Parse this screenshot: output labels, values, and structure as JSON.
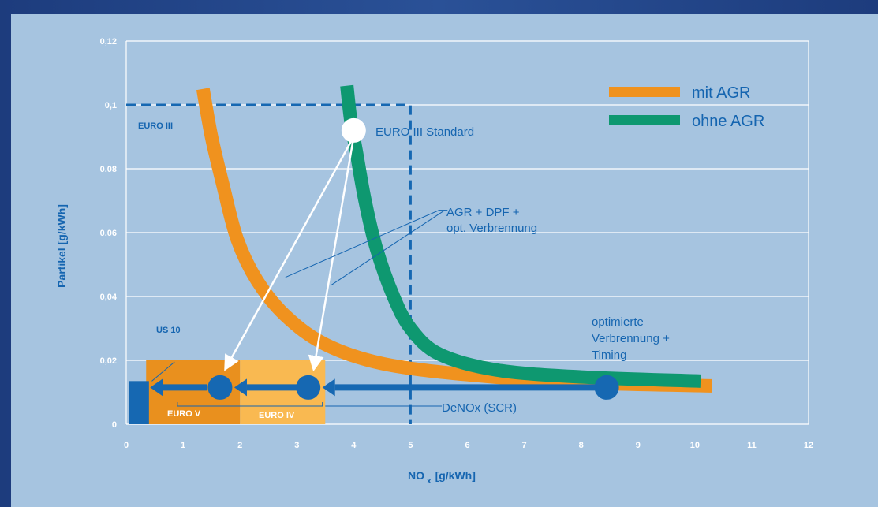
{
  "chart_data": {
    "type": "line",
    "xlabel": "NO",
    "xlabel_sub": "x",
    "xlabel_unit": "[g/kWh]",
    "ylabel": "Partikel [g/kWh]",
    "xlim": [
      0,
      12
    ],
    "ylim": [
      0,
      0.12
    ],
    "x_ticks": [
      "0",
      "1",
      "2",
      "3",
      "4",
      "5",
      "6",
      "7",
      "8",
      "9",
      "10",
      "11",
      "12"
    ],
    "y_ticks": [
      {
        "v": 0,
        "label": "0"
      },
      {
        "v": 0.02,
        "label": "0,02"
      },
      {
        "v": 0.04,
        "label": "0,04"
      },
      {
        "v": 0.06,
        "label": "0,06"
      },
      {
        "v": 0.08,
        "label": "0,08"
      },
      {
        "v": 0.1,
        "label": "0,1"
      },
      {
        "v": 0.12,
        "label": "0,12"
      }
    ],
    "grid": true,
    "legend_position": "top-right",
    "series": [
      {
        "name": "mit AGR",
        "color": "#f0921e",
        "points": [
          [
            1.35,
            0.105
          ],
          [
            1.5,
            0.09
          ],
          [
            1.7,
            0.075
          ],
          [
            1.95,
            0.058
          ],
          [
            2.3,
            0.045
          ],
          [
            2.8,
            0.034
          ],
          [
            3.5,
            0.025
          ],
          [
            4.5,
            0.019
          ],
          [
            6,
            0.0155
          ],
          [
            8,
            0.013
          ],
          [
            10.3,
            0.012
          ]
        ]
      },
      {
        "name": "ohne AGR",
        "color": "#0e9870",
        "points": [
          [
            3.88,
            0.106
          ],
          [
            3.95,
            0.095
          ],
          [
            4.05,
            0.085
          ],
          [
            4.2,
            0.07
          ],
          [
            4.4,
            0.055
          ],
          [
            4.7,
            0.04
          ],
          [
            5.0,
            0.03
          ],
          [
            5.5,
            0.022
          ],
          [
            6.5,
            0.017
          ],
          [
            8,
            0.0148
          ],
          [
            10.1,
            0.0135
          ]
        ]
      }
    ],
    "standards": [
      {
        "label": "EURO III",
        "x_max": 5,
        "y_max": 0.1
      },
      {
        "label": "EURO IV",
        "x_min": 2,
        "x_max": 3.5,
        "y_max": 0.02,
        "color": "#f9b951"
      },
      {
        "label": "EURO V",
        "x_min": 0.35,
        "x_max": 2,
        "y_max": 0.02,
        "color": "#e9901e"
      },
      {
        "label": "US 10",
        "x_min": 0,
        "x_max": 0.35,
        "y_max": 0.02
      }
    ],
    "markers": [
      {
        "x": 4.0,
        "y": 0.092,
        "fill": "#ffffff"
      },
      {
        "x": 1.65,
        "y": 0.0115,
        "fill": "#1668b2"
      },
      {
        "x": 3.2,
        "y": 0.0115,
        "fill": "#1668b2"
      },
      {
        "x": 8.45,
        "y": 0.0115,
        "fill": "#1668b2"
      }
    ],
    "us10_bar": {
      "x0": 0.05,
      "x1": 0.4,
      "y0": 0,
      "y1": 0.0135
    },
    "annotations": [
      {
        "id": "euro3std",
        "text": "EURO III Standard"
      },
      {
        "id": "agr_l1",
        "text": "AGR + DPF +"
      },
      {
        "id": "agr_l2",
        "text": "opt. Verbrennung"
      },
      {
        "id": "opt_l1",
        "text": "optimierte"
      },
      {
        "id": "opt_l2",
        "text": "Verbrennung +"
      },
      {
        "id": "opt_l3",
        "text": "Timing"
      },
      {
        "id": "denox",
        "text": "DeNOx (SCR)"
      }
    ]
  }
}
